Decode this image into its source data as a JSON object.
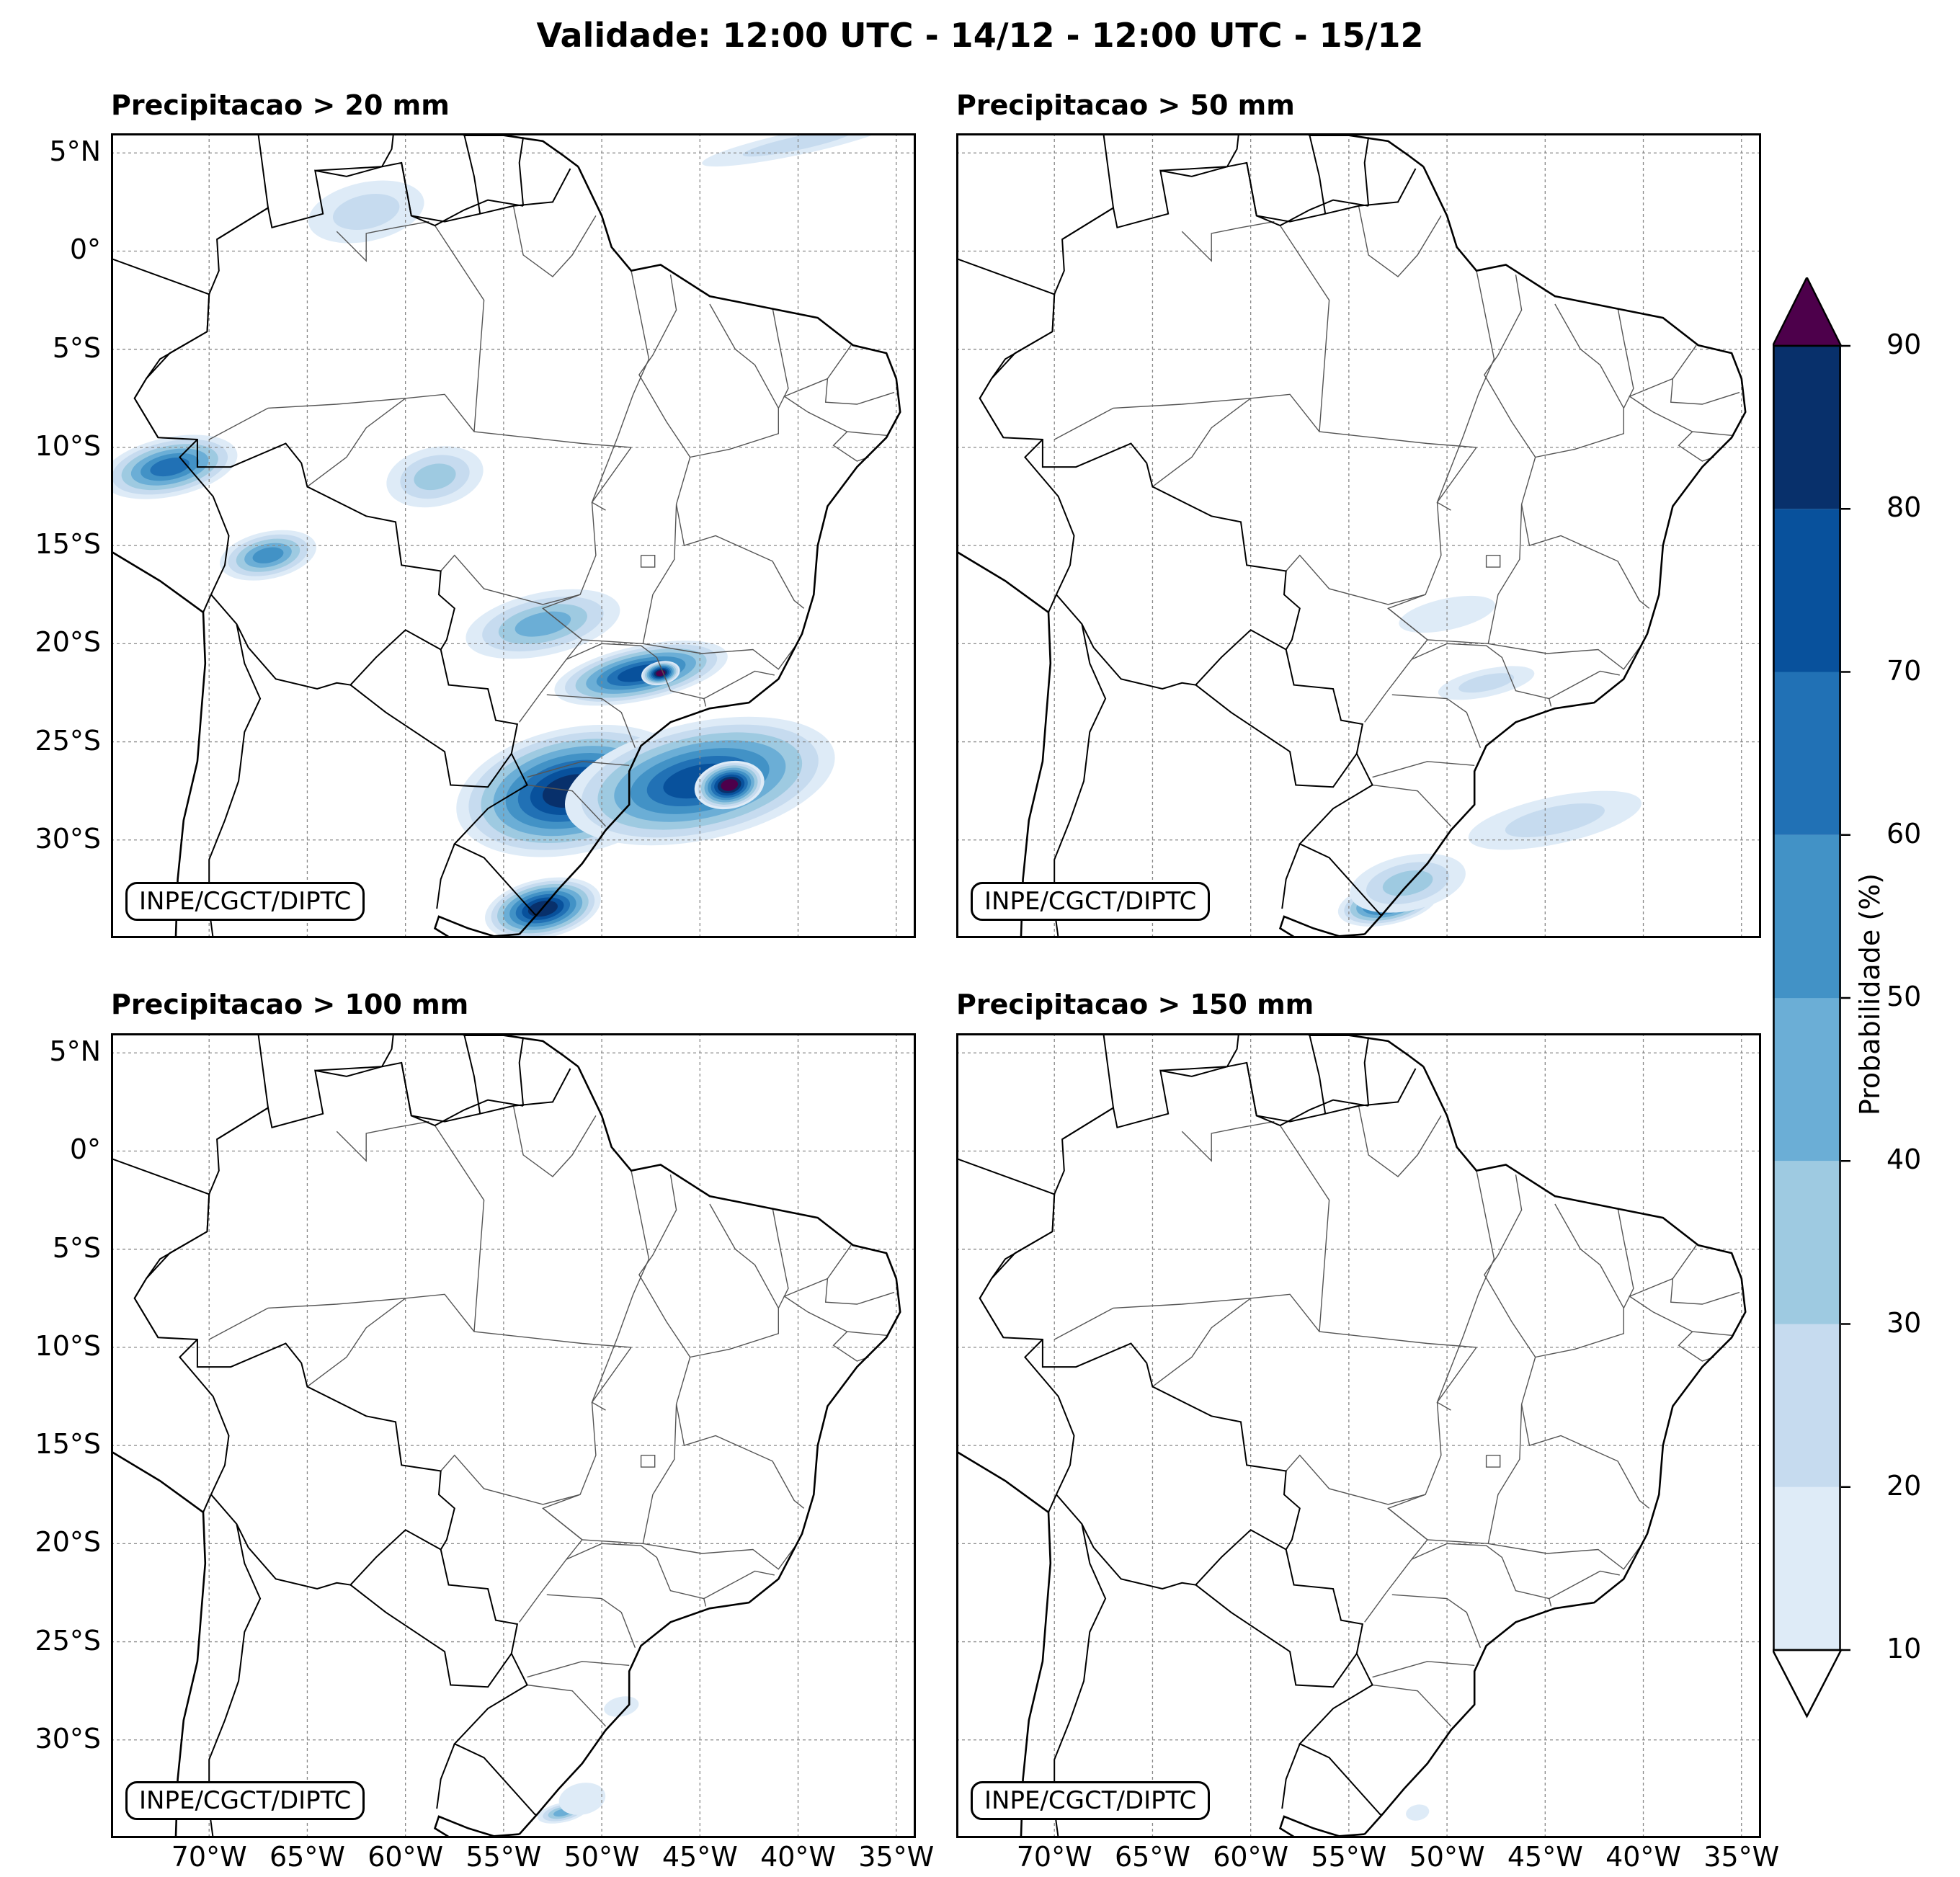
{
  "title": "Validade: 12:00 UTC - 14/12 - 12:00 UTC - 15/12",
  "panels": [
    {
      "title": "Precipitacao > 20 mm",
      "credit": "INPE/CGCT/DIPTC"
    },
    {
      "title": "Precipitacao > 50 mm",
      "credit": "INPE/CGCT/DIPTC"
    },
    {
      "title": "Precipitacao > 100 mm",
      "credit": "INPE/CGCT/DIPTC"
    },
    {
      "title": "Precipitacao > 150 mm",
      "credit": "INPE/CGCT/DIPTC"
    }
  ],
  "map_extent": {
    "lon": [
      -75,
      -34
    ],
    "lat": [
      -35,
      6
    ]
  },
  "lat_ticks": [
    {
      "value": 5,
      "label": "5°N"
    },
    {
      "value": 0,
      "label": "0°"
    },
    {
      "value": -5,
      "label": "5°S"
    },
    {
      "value": -10,
      "label": "10°S"
    },
    {
      "value": -15,
      "label": "15°S"
    },
    {
      "value": -20,
      "label": "20°S"
    },
    {
      "value": -25,
      "label": "25°S"
    },
    {
      "value": -30,
      "label": "30°S"
    }
  ],
  "lon_ticks": [
    {
      "value": -70,
      "label": "70°W"
    },
    {
      "value": -65,
      "label": "65°W"
    },
    {
      "value": -60,
      "label": "60°W"
    },
    {
      "value": -55,
      "label": "55°W"
    },
    {
      "value": -50,
      "label": "50°W"
    },
    {
      "value": -45,
      "label": "45°W"
    },
    {
      "value": -40,
      "label": "40°W"
    },
    {
      "value": -35,
      "label": "35°W"
    }
  ],
  "colorbar": {
    "label": "Probabilidade (%)",
    "ticks": [
      "10",
      "20",
      "30",
      "40",
      "50",
      "60",
      "70",
      "80",
      "90"
    ],
    "colors": [
      "#deebf7",
      "#c6dbef",
      "#9ecae1",
      "#6baed6",
      "#4292c6",
      "#2171b5",
      "#08519c",
      "#08306b"
    ],
    "over_color": "#4d004b",
    "under_color": "#ffffff"
  },
  "chart_data": {
    "type": "heatmap",
    "description_units": "probability (%) of precipitation exceeding threshold",
    "panels": [
      {
        "threshold_mm": 20,
        "features": [
          {
            "lon": -51.5,
            "lat": -27.5,
            "prob": 80,
            "rx": 6,
            "ry": 3.2
          },
          {
            "lon": -45,
            "lat": -27,
            "prob": 70,
            "rx": 7,
            "ry": 3
          },
          {
            "lon": -43.5,
            "lat": -27.2,
            "prob": 90,
            "rx": 1.8,
            "ry": 1.2
          },
          {
            "lon": -53,
            "lat": -33.5,
            "prob": 80,
            "rx": 3,
            "ry": 1.5
          },
          {
            "lon": -48,
            "lat": -21.5,
            "prob": 70,
            "rx": 4.5,
            "ry": 1.4
          },
          {
            "lon": -47,
            "lat": -21.5,
            "prob": 90,
            "rx": 1,
            "ry": 0.6
          },
          {
            "lon": -53,
            "lat": -19,
            "prob": 40,
            "rx": 4,
            "ry": 1.6
          },
          {
            "lon": -72,
            "lat": -11,
            "prob": 60,
            "rx": 3.5,
            "ry": 1.5
          },
          {
            "lon": -67,
            "lat": -15.5,
            "prob": 50,
            "rx": 2.5,
            "ry": 1.2
          },
          {
            "lon": -58.5,
            "lat": -11.5,
            "prob": 30,
            "rx": 2.5,
            "ry": 1.5
          },
          {
            "lon": -62,
            "lat": 2,
            "prob": 20,
            "rx": 3,
            "ry": 1.5
          },
          {
            "lon": -40,
            "lat": 5.5,
            "prob": 20,
            "rx": 5,
            "ry": 0.6
          }
        ]
      },
      {
        "threshold_mm": 50,
        "features": [
          {
            "lon": -53,
            "lat": -33.2,
            "prob": 70,
            "rx": 2.6,
            "ry": 1.1
          },
          {
            "lon": -52,
            "lat": -32.2,
            "prob": 30,
            "rx": 3,
            "ry": 1.4
          },
          {
            "lon": -44.5,
            "lat": -29,
            "prob": 20,
            "rx": 4.5,
            "ry": 1.2
          },
          {
            "lon": -48,
            "lat": -22,
            "prob": 20,
            "rx": 2.5,
            "ry": 0.7
          },
          {
            "lon": -50,
            "lat": -18.5,
            "prob": 10,
            "rx": 2.5,
            "ry": 0.8
          }
        ]
      },
      {
        "threshold_mm": 100,
        "features": [
          {
            "lon": -52,
            "lat": -33.7,
            "prob": 40,
            "rx": 1.3,
            "ry": 0.5
          },
          {
            "lon": -51,
            "lat": -33,
            "prob": 10,
            "rx": 1.2,
            "ry": 0.8
          },
          {
            "lon": -49,
            "lat": -28.3,
            "prob": 10,
            "rx": 0.9,
            "ry": 0.5
          }
        ]
      },
      {
        "threshold_mm": 150,
        "features": [
          {
            "lon": -51.5,
            "lat": -33.7,
            "prob": 10,
            "rx": 0.6,
            "ry": 0.4
          }
        ]
      }
    ]
  }
}
